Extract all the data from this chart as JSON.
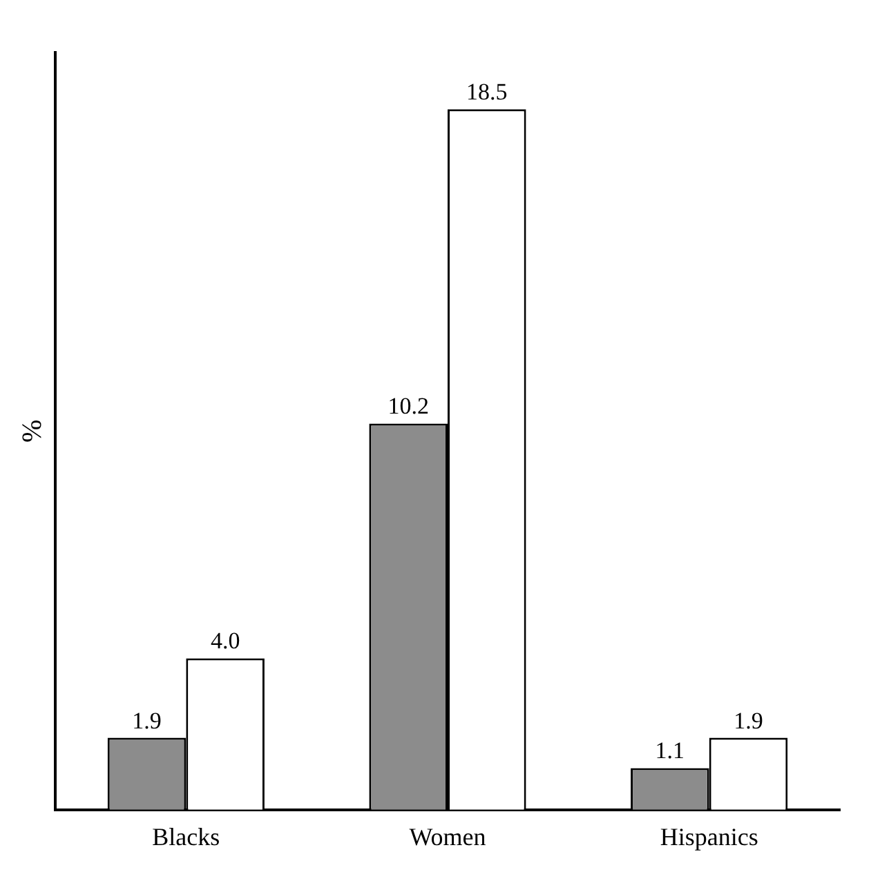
{
  "chart_data": {
    "type": "bar",
    "ylabel": "%",
    "categories": [
      "Blacks",
      "Women",
      "Hispanics"
    ],
    "series": [
      {
        "color": "#8c8c8c",
        "values": [
          1.9,
          10.2,
          1.1
        ],
        "value_labels": [
          "1.9",
          "10.2",
          "1.1"
        ]
      },
      {
        "color": "#ffffff",
        "values": [
          4.0,
          18.5,
          1.9
        ],
        "value_labels": [
          "4.0",
          "18.5",
          "1.9"
        ]
      }
    ],
    "grid": false,
    "legend": false,
    "tick_labels": "x"
  }
}
